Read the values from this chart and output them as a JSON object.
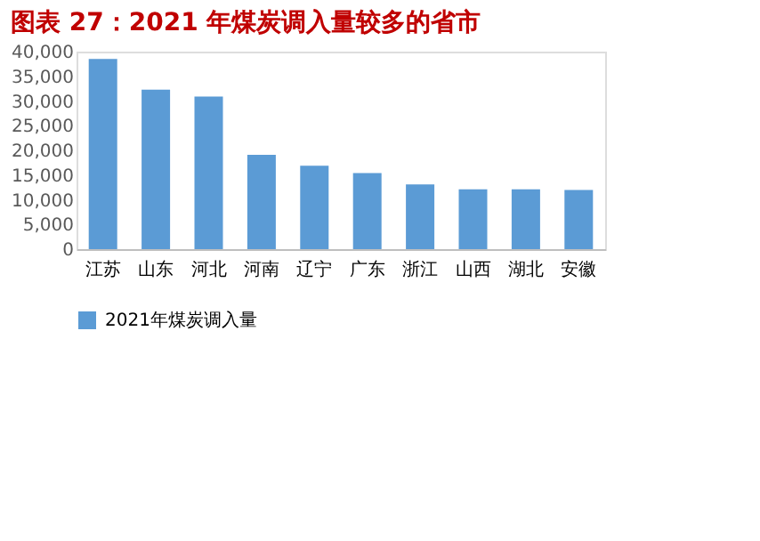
{
  "chart_data": {
    "type": "bar",
    "title": "图表 27：2021 年煤炭调入量较多的省市",
    "categories": [
      "江苏",
      "山东",
      "河北",
      "河南",
      "辽宁",
      "广东",
      "浙江",
      "山西",
      "湖北",
      "安徽"
    ],
    "series": [
      {
        "name": "2021年煤炭调入量",
        "color": "#5b9bd5",
        "values": [
          38500,
          32300,
          30900,
          19100,
          16900,
          15400,
          13100,
          12100,
          12100,
          12000
        ]
      }
    ],
    "ylim": [
      0,
      40000
    ],
    "yticks": [
      {
        "value": 0,
        "label": "0"
      },
      {
        "value": 5000,
        "label": "5,000"
      },
      {
        "value": 10000,
        "label": "10,000"
      },
      {
        "value": 15000,
        "label": "15,000"
      },
      {
        "value": 20000,
        "label": "20,000"
      },
      {
        "value": 25000,
        "label": "25,000"
      },
      {
        "value": 30000,
        "label": "30,000"
      },
      {
        "value": 35000,
        "label": "35,000"
      },
      {
        "value": 40000,
        "label": "40,000"
      }
    ],
    "grid": false,
    "legend": "bottom"
  }
}
